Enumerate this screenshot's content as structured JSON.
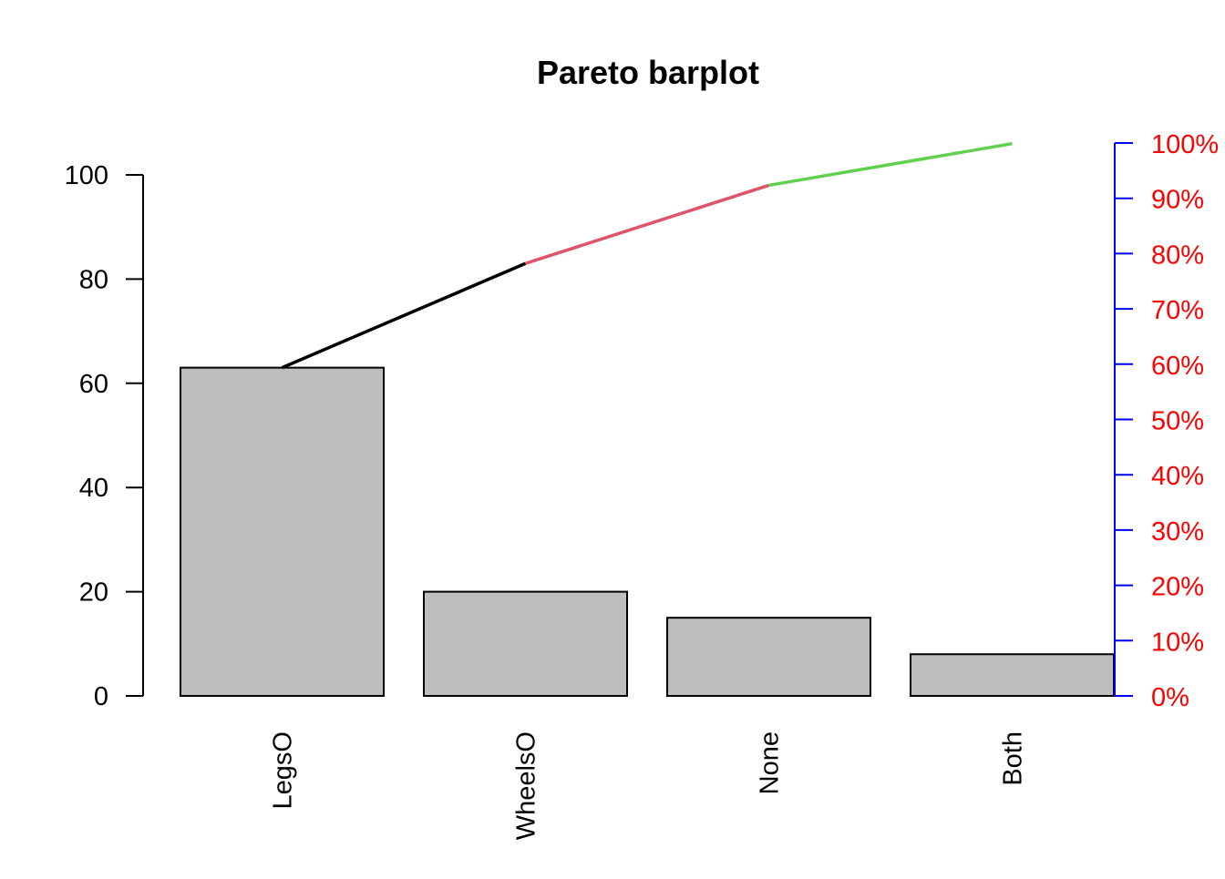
{
  "chart_data": {
    "type": "bar",
    "title": "Pareto barplot",
    "categories": [
      "LegsO",
      "WheelsO",
      "None",
      "Both"
    ],
    "values": [
      63,
      20,
      15,
      8
    ],
    "left_axis": {
      "ylim": [
        0,
        100
      ],
      "ticks": [
        0,
        20,
        40,
        60,
        80,
        100
      ]
    },
    "right_axis": {
      "ticks": [
        "0%",
        "10%",
        "20%",
        "30%",
        "40%",
        "50%",
        "60%",
        "70%",
        "80%",
        "90%",
        "100%"
      ],
      "axis_color": "#0000FF",
      "label_color": "#FF0000"
    },
    "cumulative_line": {
      "x": [
        "LegsO",
        "WheelsO",
        "None",
        "Both"
      ],
      "y": [
        63,
        83,
        98,
        106
      ],
      "segment_colors": [
        "#000000",
        "#DF536B",
        "#61D04F"
      ]
    },
    "bar_color": "#BEBEBE",
    "grid": false,
    "legend": "none"
  }
}
